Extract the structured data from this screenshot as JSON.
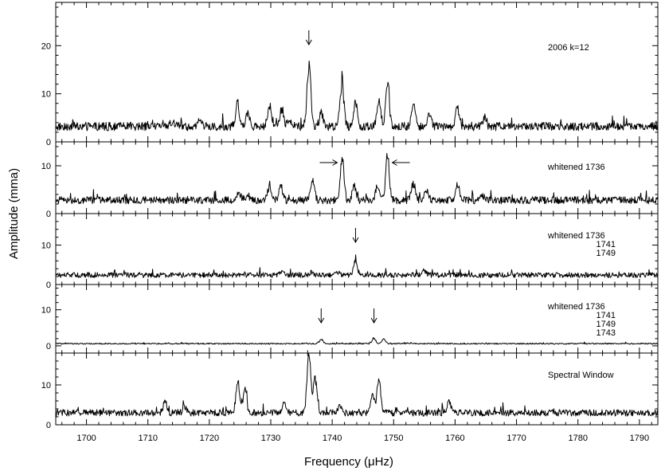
{
  "chart_data": {
    "type": "line",
    "xlabel": "Frequency (μHz)",
    "ylabel": "Amplitude (mma)",
    "xlim": [
      1695,
      1793
    ],
    "x_ticks": [
      "1700",
      "1710",
      "1720",
      "1730",
      "1740",
      "1750",
      "1760",
      "1770",
      "1780",
      "1790"
    ],
    "panels": [
      {
        "annotation": [
          "2006 k=12"
        ],
        "ylim": [
          0,
          29
        ],
        "y_ticks": [
          "0",
          "10",
          "20"
        ],
        "markers": [
          {
            "x": 1736.2,
            "direction": "down"
          }
        ],
        "peaks": [
          {
            "x": 1724.6,
            "y": 8
          },
          {
            "x": 1726.3,
            "y": 6.5
          },
          {
            "x": 1729.8,
            "y": 7.5
          },
          {
            "x": 1731.8,
            "y": 7
          },
          {
            "x": 1733.0,
            "y": 5
          },
          {
            "x": 1736.2,
            "y": 16.5
          },
          {
            "x": 1738.2,
            "y": 6
          },
          {
            "x": 1741.6,
            "y": 13
          },
          {
            "x": 1743.8,
            "y": 9
          },
          {
            "x": 1747.6,
            "y": 9
          },
          {
            "x": 1749.0,
            "y": 12
          },
          {
            "x": 1753.2,
            "y": 8
          },
          {
            "x": 1755.8,
            "y": 6
          },
          {
            "x": 1760.4,
            "y": 7.5
          },
          {
            "x": 1764.8,
            "y": 5
          },
          {
            "x": 1718.5,
            "y": 5
          },
          {
            "x": 1714.0,
            "y": 4.5
          }
        ],
        "noise_level": 3.2
      },
      {
        "annotation": [
          "whitened 1736"
        ],
        "ylim": [
          0,
          15
        ],
        "y_ticks": [
          "0",
          "10"
        ],
        "markers": [
          {
            "x": 1741.6,
            "direction": "right"
          },
          {
            "x": 1749.0,
            "direction": "left"
          }
        ],
        "peaks": [
          {
            "x": 1724.8,
            "y": 4.5
          },
          {
            "x": 1726.2,
            "y": 4
          },
          {
            "x": 1729.8,
            "y": 6
          },
          {
            "x": 1731.6,
            "y": 5.5
          },
          {
            "x": 1736.8,
            "y": 7
          },
          {
            "x": 1741.6,
            "y": 11.5
          },
          {
            "x": 1743.6,
            "y": 6
          },
          {
            "x": 1747.4,
            "y": 6
          },
          {
            "x": 1749.0,
            "y": 12.5
          },
          {
            "x": 1753.2,
            "y": 6.5
          },
          {
            "x": 1755.4,
            "y": 5
          },
          {
            "x": 1760.4,
            "y": 6.5
          },
          {
            "x": 1764.4,
            "y": 4
          }
        ],
        "noise_level": 2.8
      },
      {
        "annotation": [
          "whitened 1736",
          "1741",
          "1749"
        ],
        "ylim": [
          0,
          18
        ],
        "y_ticks": [
          "0",
          "10"
        ],
        "markers": [
          {
            "x": 1743.8,
            "direction": "down"
          }
        ],
        "peaks": [
          {
            "x": 1731.8,
            "y": 3.5
          },
          {
            "x": 1736.6,
            "y": 3
          },
          {
            "x": 1743.8,
            "y": 6.5
          },
          {
            "x": 1755.0,
            "y": 3.5
          },
          {
            "x": 1741.0,
            "y": 3
          }
        ],
        "noise_level": 2.4
      },
      {
        "annotation": [
          "whitened 1736",
          "1741",
          "1749",
          "1743"
        ],
        "ylim": [
          -2,
          17
        ],
        "y_ticks": [
          "0",
          "10"
        ],
        "markers": [
          {
            "x": 1738.2,
            "direction": "down"
          },
          {
            "x": 1746.8,
            "direction": "down"
          }
        ],
        "peaks": [
          {
            "x": 1738.2,
            "y": 1.8
          },
          {
            "x": 1746.8,
            "y": 2
          },
          {
            "x": 1748.4,
            "y": 1.8
          }
        ],
        "noise_level": 0.6
      },
      {
        "annotation": [
          "Spectral Window"
        ],
        "ylim": [
          0,
          18
        ],
        "y_ticks": [
          "0",
          "10"
        ],
        "markers": [],
        "peaks": [
          {
            "x": 1712.8,
            "y": 6
          },
          {
            "x": 1724.6,
            "y": 11
          },
          {
            "x": 1725.8,
            "y": 9
          },
          {
            "x": 1736.2,
            "y": 18
          },
          {
            "x": 1737.2,
            "y": 12
          },
          {
            "x": 1747.6,
            "y": 11.5
          },
          {
            "x": 1746.6,
            "y": 8
          },
          {
            "x": 1759.0,
            "y": 6
          },
          {
            "x": 1716.0,
            "y": 4.5
          },
          {
            "x": 1732.2,
            "y": 5.5
          },
          {
            "x": 1741.2,
            "y": 4.5
          }
        ],
        "noise_level": 3.0
      }
    ]
  }
}
